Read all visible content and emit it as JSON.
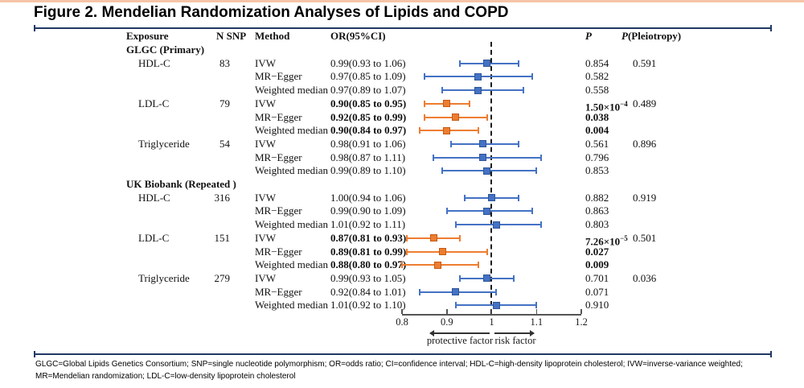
{
  "page": {
    "title": "Figure 2. Mendelian Randomization Analyses of Lipids and COPD",
    "footnote": "GLGC=Global Lipids Genetics Consortium; SNP=single nucleotide polymorphism; OR=odds ratio; CI=confidence interval; HDL-C=high-density lipoprotein cholesterol; IVW=inverse-variance weighted; MR=Mendelian randomization; LDL-C=low-density lipoprotein cholesterol"
  },
  "colors": {
    "accent_top": "#F5C4A8",
    "rule": "#203864",
    "nonsignificant": "#4472C4",
    "nonsignificant_border": "#2F5597",
    "significant": "#ED7D31",
    "significant_border": "#C55A11"
  },
  "chart_data": {
    "type": "forest",
    "columns": {
      "exposure": "Exposure",
      "n_snp": "N SNP",
      "method": "Method",
      "or_ci": "OR(95%CI)",
      "p": "P",
      "p_pleiotropy_prefix": "P",
      "p_pleiotropy_suffix": "(Pleiotropy)"
    },
    "axis": {
      "min": 0.8,
      "max": 1.2,
      "reference": 1,
      "ticks": [
        "0.8",
        "0.9",
        "1",
        "1.1",
        "1.2"
      ],
      "left_label": "protective factor",
      "right_label": "risk factor"
    },
    "groups": [
      {
        "name": "GLGC (Primary)",
        "exposures": [
          {
            "exposure": "HDL-C",
            "n_snp": "83",
            "significant": false,
            "p_pleiotropy": "0.591",
            "methods": [
              {
                "method": "IVW",
                "or_text": "0.99(0.93 to 1.06)",
                "or": 0.99,
                "lo": 0.93,
                "hi": 1.06,
                "p": "0.854"
              },
              {
                "method": "MR−Egger",
                "or_text": "0.97(0.85 to 1.09)",
                "or": 0.97,
                "lo": 0.85,
                "hi": 1.09,
                "p": "0.582"
              },
              {
                "method": "Weighted median",
                "or_text": "0.97(0.89 to 1.07)",
                "or": 0.97,
                "lo": 0.89,
                "hi": 1.07,
                "p": "0.558"
              }
            ]
          },
          {
            "exposure": "LDL-C",
            "n_snp": "79",
            "significant": true,
            "p_pleiotropy": "0.489",
            "methods": [
              {
                "method": "IVW",
                "or_text": "0.90(0.85 to 0.95)",
                "or": 0.9,
                "lo": 0.85,
                "hi": 0.95,
                "p": "1.50×10",
                "p_sup": "−4"
              },
              {
                "method": "MR−Egger",
                "or_text": "0.92(0.85 to 0.99)",
                "or": 0.92,
                "lo": 0.85,
                "hi": 0.99,
                "p": "0.038"
              },
              {
                "method": "Weighted median",
                "or_text": "0.90(0.84 to 0.97)",
                "or": 0.9,
                "lo": 0.84,
                "hi": 0.97,
                "p": "0.004"
              }
            ]
          },
          {
            "exposure": "Triglyceride",
            "n_snp": "54",
            "significant": false,
            "p_pleiotropy": "0.896",
            "methods": [
              {
                "method": "IVW",
                "or_text": "0.98(0.91 to 1.06)",
                "or": 0.98,
                "lo": 0.91,
                "hi": 1.06,
                "p": "0.561"
              },
              {
                "method": "MR−Egger",
                "or_text": "0.98(0.87 to 1.11)",
                "or": 0.98,
                "lo": 0.87,
                "hi": 1.11,
                "p": "0.796"
              },
              {
                "method": "Weighted median",
                "or_text": "0.99(0.89 to 1.10)",
                "or": 0.99,
                "lo": 0.89,
                "hi": 1.1,
                "p": "0.853"
              }
            ]
          }
        ]
      },
      {
        "name": "UK Biobank (Repeated )",
        "exposures": [
          {
            "exposure": "HDL-C",
            "n_snp": "316",
            "significant": false,
            "p_pleiotropy": "0.919",
            "methods": [
              {
                "method": "IVW",
                "or_text": "1.00(0.94 to 1.06)",
                "or": 1.0,
                "lo": 0.94,
                "hi": 1.06,
                "p": "0.882"
              },
              {
                "method": "MR−Egger",
                "or_text": "0.99(0.90 to 1.09)",
                "or": 0.99,
                "lo": 0.9,
                "hi": 1.09,
                "p": "0.863"
              },
              {
                "method": "Weighted median",
                "or_text": "1.01(0.92 to 1.11)",
                "or": 1.01,
                "lo": 0.92,
                "hi": 1.11,
                "p": "0.803"
              }
            ]
          },
          {
            "exposure": "LDL-C",
            "n_snp": "151",
            "significant": true,
            "p_pleiotropy": "0.501",
            "methods": [
              {
                "method": "IVW",
                "or_text": "0.87(0.81 to 0.93)",
                "or": 0.87,
                "lo": 0.81,
                "hi": 0.93,
                "p": "7.26×10",
                "p_sup": "−5"
              },
              {
                "method": "MR−Egger",
                "or_text": "0.89(0.81 to 0.99)",
                "or": 0.89,
                "lo": 0.81,
                "hi": 0.99,
                "p": "0.027"
              },
              {
                "method": "Weighted median",
                "or_text": "0.88(0.80 to 0.97)",
                "or": 0.88,
                "lo": 0.8,
                "hi": 0.97,
                "p": "0.009"
              }
            ]
          },
          {
            "exposure": "Triglyceride",
            "n_snp": "279",
            "significant": false,
            "p_pleiotropy": "0.036",
            "methods": [
              {
                "method": "IVW",
                "or_text": "0.99(0.93 to 1.05)",
                "or": 0.99,
                "lo": 0.93,
                "hi": 1.05,
                "p": "0.701"
              },
              {
                "method": "MR−Egger",
                "or_text": "0.92(0.84 to 1.01)",
                "or": 0.92,
                "lo": 0.84,
                "hi": 1.01,
                "p": "0.071"
              },
              {
                "method": "Weighted median",
                "or_text": "1.01(0.92 to 1.10)",
                "or": 1.01,
                "lo": 0.92,
                "hi": 1.1,
                "p": "0.910"
              }
            ]
          }
        ]
      }
    ]
  }
}
